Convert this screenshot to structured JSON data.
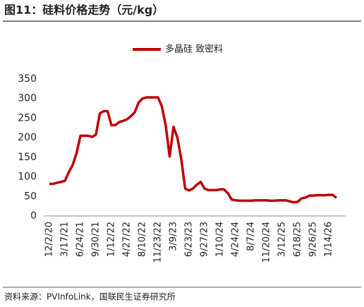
{
  "title": "图11：硅料价格走势（元/kg）",
  "source": "资料来源：PVInfoLink，国联民生证券研究所",
  "chart_data": {
    "type": "line",
    "categories": [
      "12/2/20",
      null,
      null,
      null,
      "3/17/21",
      null,
      null,
      null,
      "6/24/21",
      null,
      null,
      null,
      "9/30/21",
      null,
      null,
      null,
      "1/12/22",
      null,
      null,
      null,
      "4/27/22",
      null,
      null,
      null,
      "8/10/22",
      null,
      null,
      null,
      "11/23/22",
      null,
      null,
      null,
      "3/9/23",
      null,
      null,
      null,
      "6/23/23",
      null,
      null,
      null,
      "9/27/23",
      null,
      null,
      null,
      "1/10/24",
      null,
      null,
      null,
      "4/24/24",
      null,
      null,
      null,
      "8/7/24",
      null,
      null,
      null,
      "11/20/24",
      null,
      null,
      null,
      "3/12/25",
      null,
      null,
      null,
      "6/18/25",
      null,
      null,
      null,
      "9/26/25",
      null,
      null,
      null,
      "1/14/26",
      null,
      null
    ],
    "series": [
      {
        "name": "多晶硅 致密料",
        "color": "#c00000",
        "values": [
          82,
          82,
          85,
          87,
          90,
          112,
          130,
          160,
          205,
          205,
          205,
          202,
          208,
          262,
          268,
          268,
          232,
          232,
          240,
          243,
          247,
          255,
          265,
          290,
          300,
          303,
          303,
          303,
          303,
          280,
          230,
          152,
          228,
          200,
          145,
          70,
          65,
          70,
          80,
          87,
          70,
          66,
          66,
          66,
          68,
          68,
          58,
          42,
          40,
          39,
          39,
          39,
          39,
          40,
          40,
          40,
          40,
          39,
          39,
          40,
          40,
          40,
          37,
          35,
          36,
          45,
          47,
          52,
          52,
          53,
          53,
          53,
          54,
          54,
          46
        ]
      }
    ],
    "ylim": [
      0,
      350
    ],
    "yticks": [
      0,
      50,
      100,
      150,
      200,
      250,
      300,
      350
    ],
    "grid": false,
    "legend": "top"
  }
}
